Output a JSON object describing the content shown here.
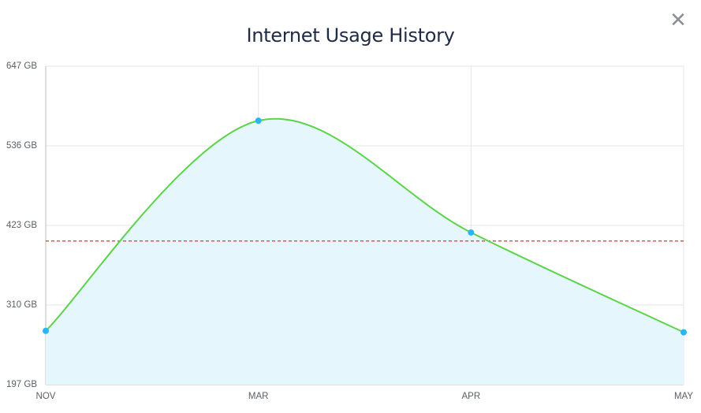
{
  "dialog": {
    "close_icon": "close-icon",
    "close_glyph": "✕"
  },
  "chart_data": {
    "type": "area",
    "title": "Internet Usage History",
    "xlabel": "",
    "ylabel": "",
    "categories": [
      "NOV",
      "MAR",
      "APR",
      "MAY"
    ],
    "series": [
      {
        "values": [
          273,
          570,
          412,
          271
        ]
      }
    ],
    "threshold": 400,
    "y_ticks": [
      "647 GB",
      "536 GB",
      "423 GB",
      "310 GB",
      "197 GB"
    ],
    "ylim": [
      197,
      647
    ],
    "grid": true,
    "colors": {
      "line": "#5cd44a",
      "fill": "#e6f6fd",
      "point": "#29b6f6",
      "threshold": "#e05555",
      "grid": "#e3e6ea",
      "axis": "#b9bec4"
    }
  }
}
